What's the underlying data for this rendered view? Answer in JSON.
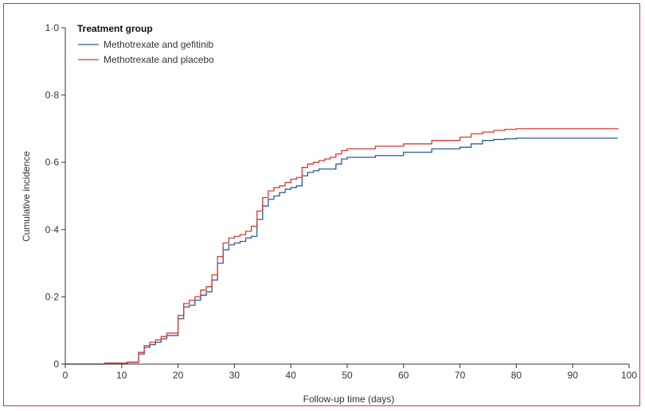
{
  "chart_data": {
    "type": "line",
    "step": true,
    "xlabel": "Follow-up time (days)",
    "ylabel": "Cumulative incidence",
    "xlim": [
      0,
      100
    ],
    "ylim": [
      0,
      1.0
    ],
    "xticks": [
      0,
      10,
      20,
      30,
      40,
      50,
      60,
      70,
      80,
      90,
      100
    ],
    "xtick_labels": [
      "0",
      "10",
      "20",
      "30",
      "40",
      "50",
      "60",
      "70",
      "80",
      "90",
      "100"
    ],
    "yticks": [
      0,
      0.2,
      0.4,
      0.6,
      0.8,
      1.0
    ],
    "ytick_labels": [
      "0",
      "0·2",
      "0·4",
      "0·6",
      "0·8",
      "1·0"
    ],
    "grid": false,
    "legend": {
      "title": "Treatment group",
      "placement": "top-left"
    },
    "series": [
      {
        "name": "Methotrexate and gefitinib",
        "color": "#2a5b9a",
        "x": [
          0,
          7,
          11,
          13,
          14,
          15,
          16,
          17,
          18,
          20,
          21,
          22,
          23,
          24,
          25,
          26,
          27,
          28,
          29,
          30,
          31,
          32,
          33,
          34,
          35,
          36,
          37,
          38,
          39,
          40,
          41,
          42,
          43,
          44,
          45,
          46,
          47,
          48,
          49,
          50,
          55,
          60,
          65,
          70,
          72,
          74,
          76,
          78,
          80,
          98
        ],
        "y": [
          0,
          0.003,
          0.005,
          0.03,
          0.05,
          0.058,
          0.065,
          0.075,
          0.085,
          0.135,
          0.17,
          0.175,
          0.19,
          0.205,
          0.215,
          0.25,
          0.3,
          0.34,
          0.355,
          0.36,
          0.365,
          0.375,
          0.38,
          0.43,
          0.47,
          0.49,
          0.5,
          0.51,
          0.52,
          0.525,
          0.53,
          0.56,
          0.57,
          0.575,
          0.58,
          0.58,
          0.58,
          0.595,
          0.61,
          0.615,
          0.62,
          0.63,
          0.64,
          0.645,
          0.655,
          0.665,
          0.668,
          0.67,
          0.672,
          0.672
        ]
      },
      {
        "name": "Methotrexate and placebo",
        "color": "#d93a32",
        "x": [
          0,
          7,
          11,
          13,
          14,
          15,
          16,
          17,
          18,
          20,
          21,
          22,
          23,
          24,
          25,
          26,
          27,
          28,
          29,
          30,
          31,
          32,
          33,
          34,
          35,
          36,
          37,
          38,
          39,
          40,
          41,
          42,
          43,
          44,
          45,
          46,
          47,
          48,
          49,
          50,
          55,
          60,
          65,
          70,
          72,
          74,
          76,
          78,
          80,
          98
        ],
        "y": [
          0,
          0.003,
          0.006,
          0.035,
          0.055,
          0.065,
          0.072,
          0.082,
          0.092,
          0.145,
          0.18,
          0.19,
          0.2,
          0.22,
          0.23,
          0.265,
          0.32,
          0.36,
          0.375,
          0.38,
          0.385,
          0.395,
          0.41,
          0.455,
          0.495,
          0.515,
          0.525,
          0.53,
          0.54,
          0.55,
          0.555,
          0.585,
          0.595,
          0.6,
          0.605,
          0.61,
          0.615,
          0.625,
          0.635,
          0.64,
          0.648,
          0.655,
          0.665,
          0.675,
          0.685,
          0.69,
          0.695,
          0.698,
          0.7,
          0.702
        ]
      }
    ]
  }
}
